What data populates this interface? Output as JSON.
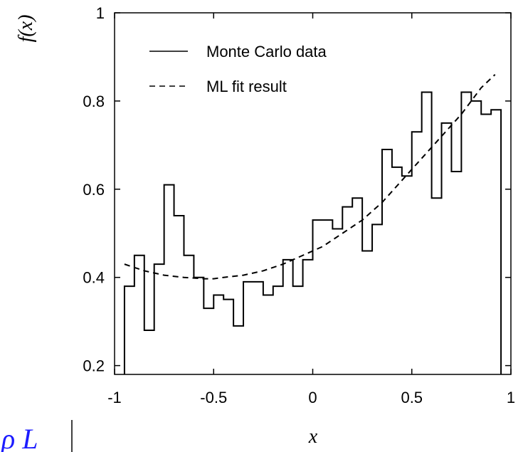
{
  "chart_data": {
    "type": "line",
    "ylabel": "f(x)",
    "xlabel": "x",
    "xlim": [
      -1,
      1
    ],
    "ylim": [
      0.18,
      1.0
    ],
    "x_ticks": [
      -1,
      -0.5,
      0,
      0.5,
      1
    ],
    "x_tick_labels": [
      "-1",
      "-0.5",
      "0",
      "0.5",
      "1"
    ],
    "y_ticks": [
      0.2,
      0.4,
      0.6,
      0.8,
      1.0
    ],
    "y_tick_labels": [
      "0.2",
      "0.4",
      "0.6",
      "0.8",
      "1"
    ],
    "grid": false,
    "legend_position": "top-left",
    "series": [
      {
        "name": "Monte Carlo data",
        "style": "solid-step",
        "bin_edges": [
          -0.95,
          -0.9,
          -0.85,
          -0.8,
          -0.75,
          -0.7,
          -0.65,
          -0.6,
          -0.55,
          -0.5,
          -0.45,
          -0.4,
          -0.35,
          -0.3,
          -0.25,
          -0.2,
          -0.15,
          -0.1,
          -0.05,
          0.0,
          0.05,
          0.1,
          0.15,
          0.2,
          0.25,
          0.3,
          0.35,
          0.4,
          0.45,
          0.5,
          0.55,
          0.6,
          0.65,
          0.7,
          0.75,
          0.8,
          0.85,
          0.9,
          0.95
        ],
        "values": [
          0.38,
          0.45,
          0.28,
          0.43,
          0.61,
          0.54,
          0.45,
          0.4,
          0.33,
          0.36,
          0.35,
          0.29,
          0.39,
          0.39,
          0.36,
          0.38,
          0.44,
          0.38,
          0.44,
          0.53,
          0.53,
          0.51,
          0.56,
          0.58,
          0.46,
          0.52,
          0.69,
          0.65,
          0.63,
          0.73,
          0.82,
          0.58,
          0.75,
          0.64,
          0.82,
          0.8,
          0.77,
          0.78
        ]
      },
      {
        "name": "ML fit result",
        "style": "dashed",
        "x": [
          -0.95,
          -0.85,
          -0.75,
          -0.65,
          -0.55,
          -0.5,
          -0.45,
          -0.35,
          -0.25,
          -0.15,
          -0.05,
          0.05,
          0.15,
          0.25,
          0.35,
          0.45,
          0.55,
          0.65,
          0.75,
          0.85,
          0.92
        ],
        "values": [
          0.43,
          0.415,
          0.405,
          0.4,
          0.397,
          0.397,
          0.4,
          0.405,
          0.415,
          0.43,
          0.45,
          0.47,
          0.5,
          0.53,
          0.57,
          0.62,
          0.67,
          0.72,
          0.77,
          0.83,
          0.86
        ]
      }
    ]
  },
  "page_fragment": {
    "text": "ρ L",
    "color": "#1c1cff"
  }
}
